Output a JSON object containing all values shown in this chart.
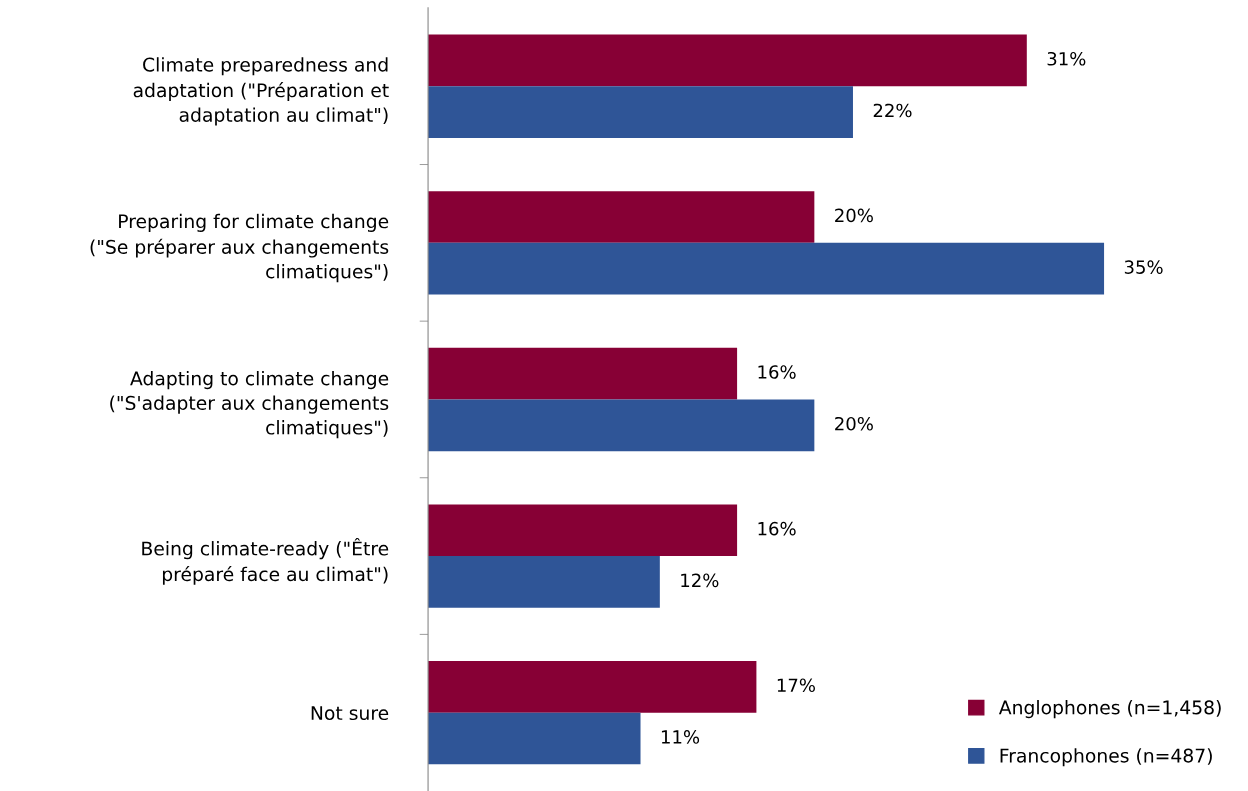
{
  "chart_data": {
    "type": "bar",
    "orientation": "horizontal",
    "categories": [
      "Climate preparedness and\nadaptation (\"Préparation et\nadaptation au climat\")",
      "Preparing for climate change\n(\"Se préparer aux changements\nclimatiques\")",
      "Adapting to climate change\n(\"S'adapter aux changements\nclimatiques\")",
      "Being climate-ready (\"Être\npréparé face au climat\")",
      "Not sure"
    ],
    "series": [
      {
        "name": "Anglophones (n=1,458)",
        "color": "#870035",
        "values": [
          31,
          20,
          16,
          16,
          17
        ],
        "value_labels": [
          "31%",
          "20%",
          "16%",
          "16%",
          "17%"
        ]
      },
      {
        "name": "Francophones (n=487)",
        "color": "#2F5597",
        "values": [
          22,
          35,
          20,
          12,
          11
        ],
        "value_labels": [
          "22%",
          "35%",
          "20%",
          "12%",
          "11%"
        ]
      }
    ],
    "legend": "bottom right",
    "grid": false,
    "tick_labels": "y"
  }
}
